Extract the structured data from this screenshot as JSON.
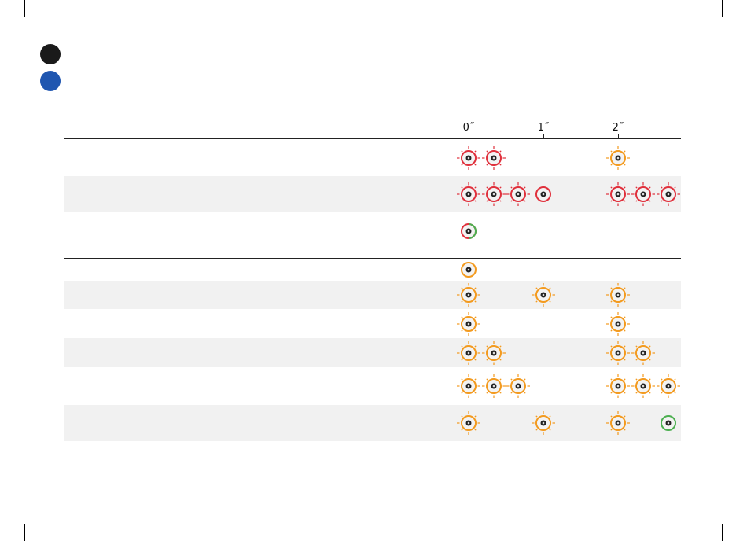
{
  "colors": {
    "red": "#e0303c",
    "orange": "#f39a1e",
    "green": "#4caf50",
    "marker_black": "#1a1a1a",
    "marker_blue": "#1f56b0"
  },
  "timeline": {
    "ticks": [
      "0˝",
      "1˝",
      "2˝"
    ]
  },
  "rows": [
    {
      "section": 1,
      "shaded": false,
      "icons": [
        {
          "slot": 0,
          "color": "red",
          "flash": true
        },
        {
          "slot": 1,
          "color": "red",
          "flash": true
        },
        {
          "slot": 4,
          "color": "orange",
          "flash": true
        }
      ]
    },
    {
      "section": 1,
      "shaded": true,
      "icons": [
        {
          "slot": 0,
          "color": "red",
          "flash": true
        },
        {
          "slot": 1,
          "color": "red",
          "flash": true
        },
        {
          "slot": 2,
          "color": "red",
          "flash": true
        },
        {
          "slot": 3,
          "color": "red",
          "flash": false
        },
        {
          "slot": 4,
          "color": "red",
          "flash": true
        },
        {
          "slot": 5,
          "color": "red",
          "flash": true
        },
        {
          "slot": 6,
          "color": "red",
          "flash": true
        }
      ]
    },
    {
      "section": 1,
      "shaded": false,
      "icons": [
        {
          "slot": 0,
          "color": "red-green",
          "flash": false
        }
      ]
    },
    {
      "section": 2,
      "shaded": false,
      "icons": [
        {
          "slot": 0,
          "color": "orange",
          "flash": false
        }
      ]
    },
    {
      "section": 2,
      "shaded": true,
      "icons": [
        {
          "slot": 0,
          "color": "orange",
          "flash": true
        },
        {
          "slot": 3,
          "color": "orange",
          "flash": true
        },
        {
          "slot": 4,
          "color": "orange",
          "flash": true
        }
      ]
    },
    {
      "section": 2,
      "shaded": false,
      "icons": [
        {
          "slot": 0,
          "color": "orange",
          "flash": true
        },
        {
          "slot": 4,
          "color": "orange",
          "flash": true
        }
      ]
    },
    {
      "section": 2,
      "shaded": true,
      "icons": [
        {
          "slot": 0,
          "color": "orange",
          "flash": true
        },
        {
          "slot": 1,
          "color": "orange",
          "flash": true
        },
        {
          "slot": 4,
          "color": "orange",
          "flash": true
        },
        {
          "slot": 5,
          "color": "orange",
          "flash": true
        }
      ]
    },
    {
      "section": 2,
      "shaded": false,
      "icons": [
        {
          "slot": 0,
          "color": "orange",
          "flash": true
        },
        {
          "slot": 1,
          "color": "orange",
          "flash": true
        },
        {
          "slot": 2,
          "color": "orange",
          "flash": true
        },
        {
          "slot": 4,
          "color": "orange",
          "flash": true
        },
        {
          "slot": 5,
          "color": "orange",
          "flash": true
        },
        {
          "slot": 6,
          "color": "orange",
          "flash": true
        }
      ]
    },
    {
      "section": 2,
      "shaded": true,
      "icons": [
        {
          "slot": 0,
          "color": "orange",
          "flash": true
        },
        {
          "slot": 3,
          "color": "orange",
          "flash": true
        },
        {
          "slot": 4,
          "color": "orange",
          "flash": true
        },
        {
          "slot": 6,
          "color": "green",
          "flash": false
        }
      ]
    }
  ]
}
